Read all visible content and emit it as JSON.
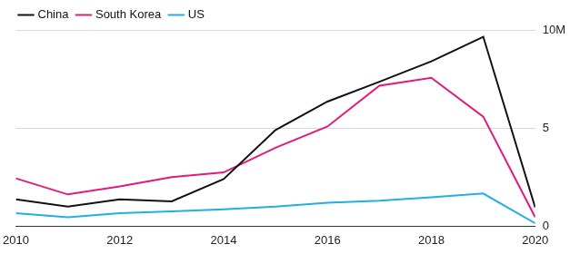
{
  "chart_data": {
    "type": "line",
    "x": [
      2010,
      2011,
      2012,
      2013,
      2014,
      2015,
      2016,
      2017,
      2018,
      2019,
      2020
    ],
    "series": [
      {
        "name": "China",
        "color": "#111111",
        "values": [
          1.37,
          1.0,
          1.37,
          1.27,
          2.4,
          4.9,
          6.35,
          7.36,
          8.4,
          9.65,
          0.96
        ]
      },
      {
        "name": "South Korea",
        "color": "#e5187e",
        "values": [
          2.44,
          1.62,
          2.03,
          2.5,
          2.74,
          4.0,
          5.08,
          7.16,
          7.56,
          5.58,
          0.46
        ]
      },
      {
        "name": "US",
        "color": "#22aee6",
        "values": [
          0.66,
          0.46,
          0.66,
          0.76,
          0.86,
          1.0,
          1.2,
          1.3,
          1.47,
          1.67,
          0.15
        ]
      }
    ],
    "xlim": [
      2010,
      2020
    ],
    "xticks": [
      2010,
      2012,
      2014,
      2016,
      2018,
      2020
    ],
    "ylim": [
      0,
      10
    ],
    "yticks": [
      0,
      5,
      {
        "value": 10,
        "label": "10M"
      }
    ],
    "grid": true,
    "legend": "top-left"
  }
}
